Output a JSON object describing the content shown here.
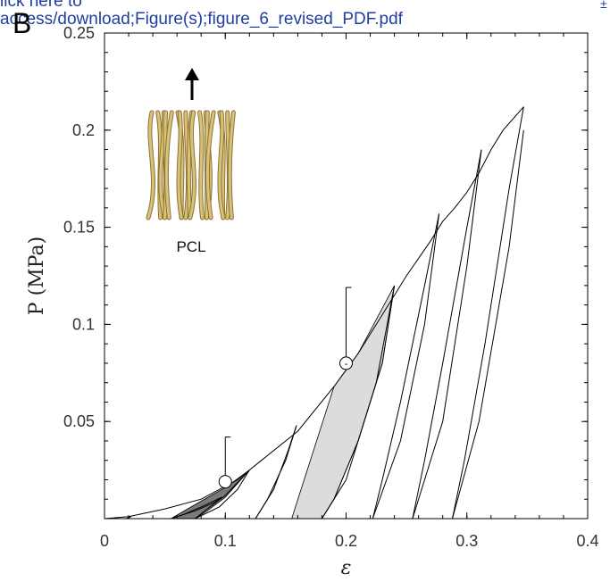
{
  "header": {
    "link_line1": "lick here to",
    "link_line2": "access/download;Figure(s);figure_6_revised_PDF.pdf",
    "panel_letter": "B",
    "corner_mark": "±"
  },
  "inset": {
    "label": "PCL",
    "arrow": "up-arrow",
    "fiber_color": "#d8c27a"
  },
  "chart_data": {
    "type": "line",
    "xlabel": "ε",
    "ylabel": "P (MPa)",
    "xlim": [
      0,
      0.4
    ],
    "ylim": [
      0,
      0.25
    ],
    "xticks": [
      0,
      0.1,
      0.2,
      0.3,
      0.4
    ],
    "yticks": [
      0.05,
      0.1,
      0.15,
      0.2,
      0.25
    ],
    "xtick_labels": [
      "0",
      "0.1",
      "0.2",
      "0.3",
      "0.4"
    ],
    "ytick_labels": [
      "0.05",
      "0.1",
      "0.15",
      "0.2",
      "0.25"
    ],
    "envelope": [
      [
        0,
        0
      ],
      [
        0.02,
        0.001
      ],
      [
        0.05,
        0.005
      ],
      [
        0.08,
        0.01
      ],
      [
        0.11,
        0.02
      ],
      [
        0.13,
        0.03
      ],
      [
        0.16,
        0.045
      ],
      [
        0.19,
        0.068
      ],
      [
        0.21,
        0.085
      ],
      [
        0.23,
        0.105
      ],
      [
        0.25,
        0.125
      ],
      [
        0.27,
        0.143
      ],
      [
        0.28,
        0.153
      ],
      [
        0.29,
        0.16
      ],
      [
        0.3,
        0.168
      ],
      [
        0.31,
        0.178
      ],
      [
        0.32,
        0.19
      ],
      [
        0.33,
        0.2
      ],
      [
        0.347,
        0.212
      ]
    ],
    "cycles": [
      {
        "peak": [
          0.022,
          0.001
        ],
        "unload": [
          [
            0.022,
            0.001
          ],
          [
            0.02,
            0.0005
          ],
          [
            0.018,
            0
          ]
        ],
        "reload": [
          [
            0.018,
            0
          ],
          [
            0.022,
            0.001
          ]
        ]
      },
      {
        "peak": [
          0.097,
          0.011
        ],
        "unload": [
          [
            0.097,
            0.011
          ],
          [
            0.08,
            0.006
          ],
          [
            0.065,
            0.002
          ],
          [
            0.055,
            0
          ]
        ],
        "reload": [
          [
            0.055,
            0
          ],
          [
            0.075,
            0.004
          ],
          [
            0.09,
            0.008
          ],
          [
            0.097,
            0.011
          ]
        ]
      },
      {
        "peak": [
          0.12,
          0.025
        ],
        "unload": [
          [
            0.12,
            0.025
          ],
          [
            0.1,
            0.012
          ],
          [
            0.085,
            0.005
          ],
          [
            0.075,
            0
          ]
        ],
        "reload": [
          [
            0.075,
            0
          ],
          [
            0.095,
            0.006
          ],
          [
            0.11,
            0.015
          ],
          [
            0.12,
            0.025
          ]
        ]
      },
      {
        "peak": [
          0.159,
          0.048
        ],
        "unload": [
          [
            0.159,
            0.048
          ],
          [
            0.15,
            0.03
          ],
          [
            0.135,
            0.01
          ],
          [
            0.125,
            0
          ]
        ],
        "reload": [
          [
            0.125,
            0
          ],
          [
            0.14,
            0.015
          ],
          [
            0.152,
            0.035
          ],
          [
            0.159,
            0.048
          ]
        ]
      },
      {
        "peak": [
          0.24,
          0.12
        ],
        "unload": [
          [
            0.24,
            0.12
          ],
          [
            0.23,
            0.08
          ],
          [
            0.21,
            0.04
          ],
          [
            0.19,
            0.01
          ],
          [
            0.18,
            0
          ]
        ],
        "reload": [
          [
            0.18,
            0
          ],
          [
            0.2,
            0.02
          ],
          [
            0.225,
            0.07
          ],
          [
            0.24,
            0.12
          ]
        ]
      },
      {
        "peak": [
          0.277,
          0.157
        ],
        "unload": [
          [
            0.277,
            0.157
          ],
          [
            0.265,
            0.12
          ],
          [
            0.245,
            0.06
          ],
          [
            0.23,
            0.02
          ],
          [
            0.222,
            0
          ]
        ],
        "reload": [
          [
            0.222,
            0
          ],
          [
            0.245,
            0.04
          ],
          [
            0.265,
            0.1
          ],
          [
            0.277,
            0.157
          ]
        ]
      },
      {
        "peak": [
          0.312,
          0.19
        ],
        "unload": [
          [
            0.312,
            0.19
          ],
          [
            0.3,
            0.15
          ],
          [
            0.28,
            0.08
          ],
          [
            0.265,
            0.03
          ],
          [
            0.255,
            0
          ]
        ],
        "reload": [
          [
            0.255,
            0
          ],
          [
            0.28,
            0.05
          ],
          [
            0.3,
            0.13
          ],
          [
            0.312,
            0.19
          ]
        ]
      },
      {
        "peak": [
          0.347,
          0.212
        ],
        "unload": [
          [
            0.347,
            0.212
          ],
          [
            0.335,
            0.17
          ],
          [
            0.315,
            0.09
          ],
          [
            0.298,
            0.03
          ],
          [
            0.288,
            0
          ]
        ],
        "reload": [
          [
            0.288,
            0
          ],
          [
            0.31,
            0.05
          ],
          [
            0.335,
            0.14
          ],
          [
            0.347,
            0.2
          ]
        ]
      }
    ],
    "hysteresis_shaded": [
      {
        "fill": "#7a7a7a",
        "loading": [
          [
            0.055,
            0
          ],
          [
            0.08,
            0.009
          ],
          [
            0.1,
            0.016
          ],
          [
            0.12,
            0.025
          ]
        ],
        "unloading": [
          [
            0.12,
            0.025
          ],
          [
            0.1,
            0.011
          ],
          [
            0.085,
            0.004
          ],
          [
            0.075,
            0
          ]
        ]
      },
      {
        "fill": "#dcdcdc",
        "loading": [
          [
            0.155,
            0
          ],
          [
            0.19,
            0.068
          ],
          [
            0.21,
            0.085
          ],
          [
            0.24,
            0.12
          ]
        ],
        "unloading": [
          [
            0.24,
            0.12
          ],
          [
            0.23,
            0.08
          ],
          [
            0.21,
            0.04
          ],
          [
            0.19,
            0.01
          ],
          [
            0.18,
            0
          ]
        ]
      }
    ],
    "markers": [
      {
        "x": 0.1,
        "y": 0.019,
        "symbol": "",
        "error_top": 0.042
      },
      {
        "x": 0.2,
        "y": 0.08,
        "symbol": "-",
        "error_top": 0.119
      }
    ]
  }
}
